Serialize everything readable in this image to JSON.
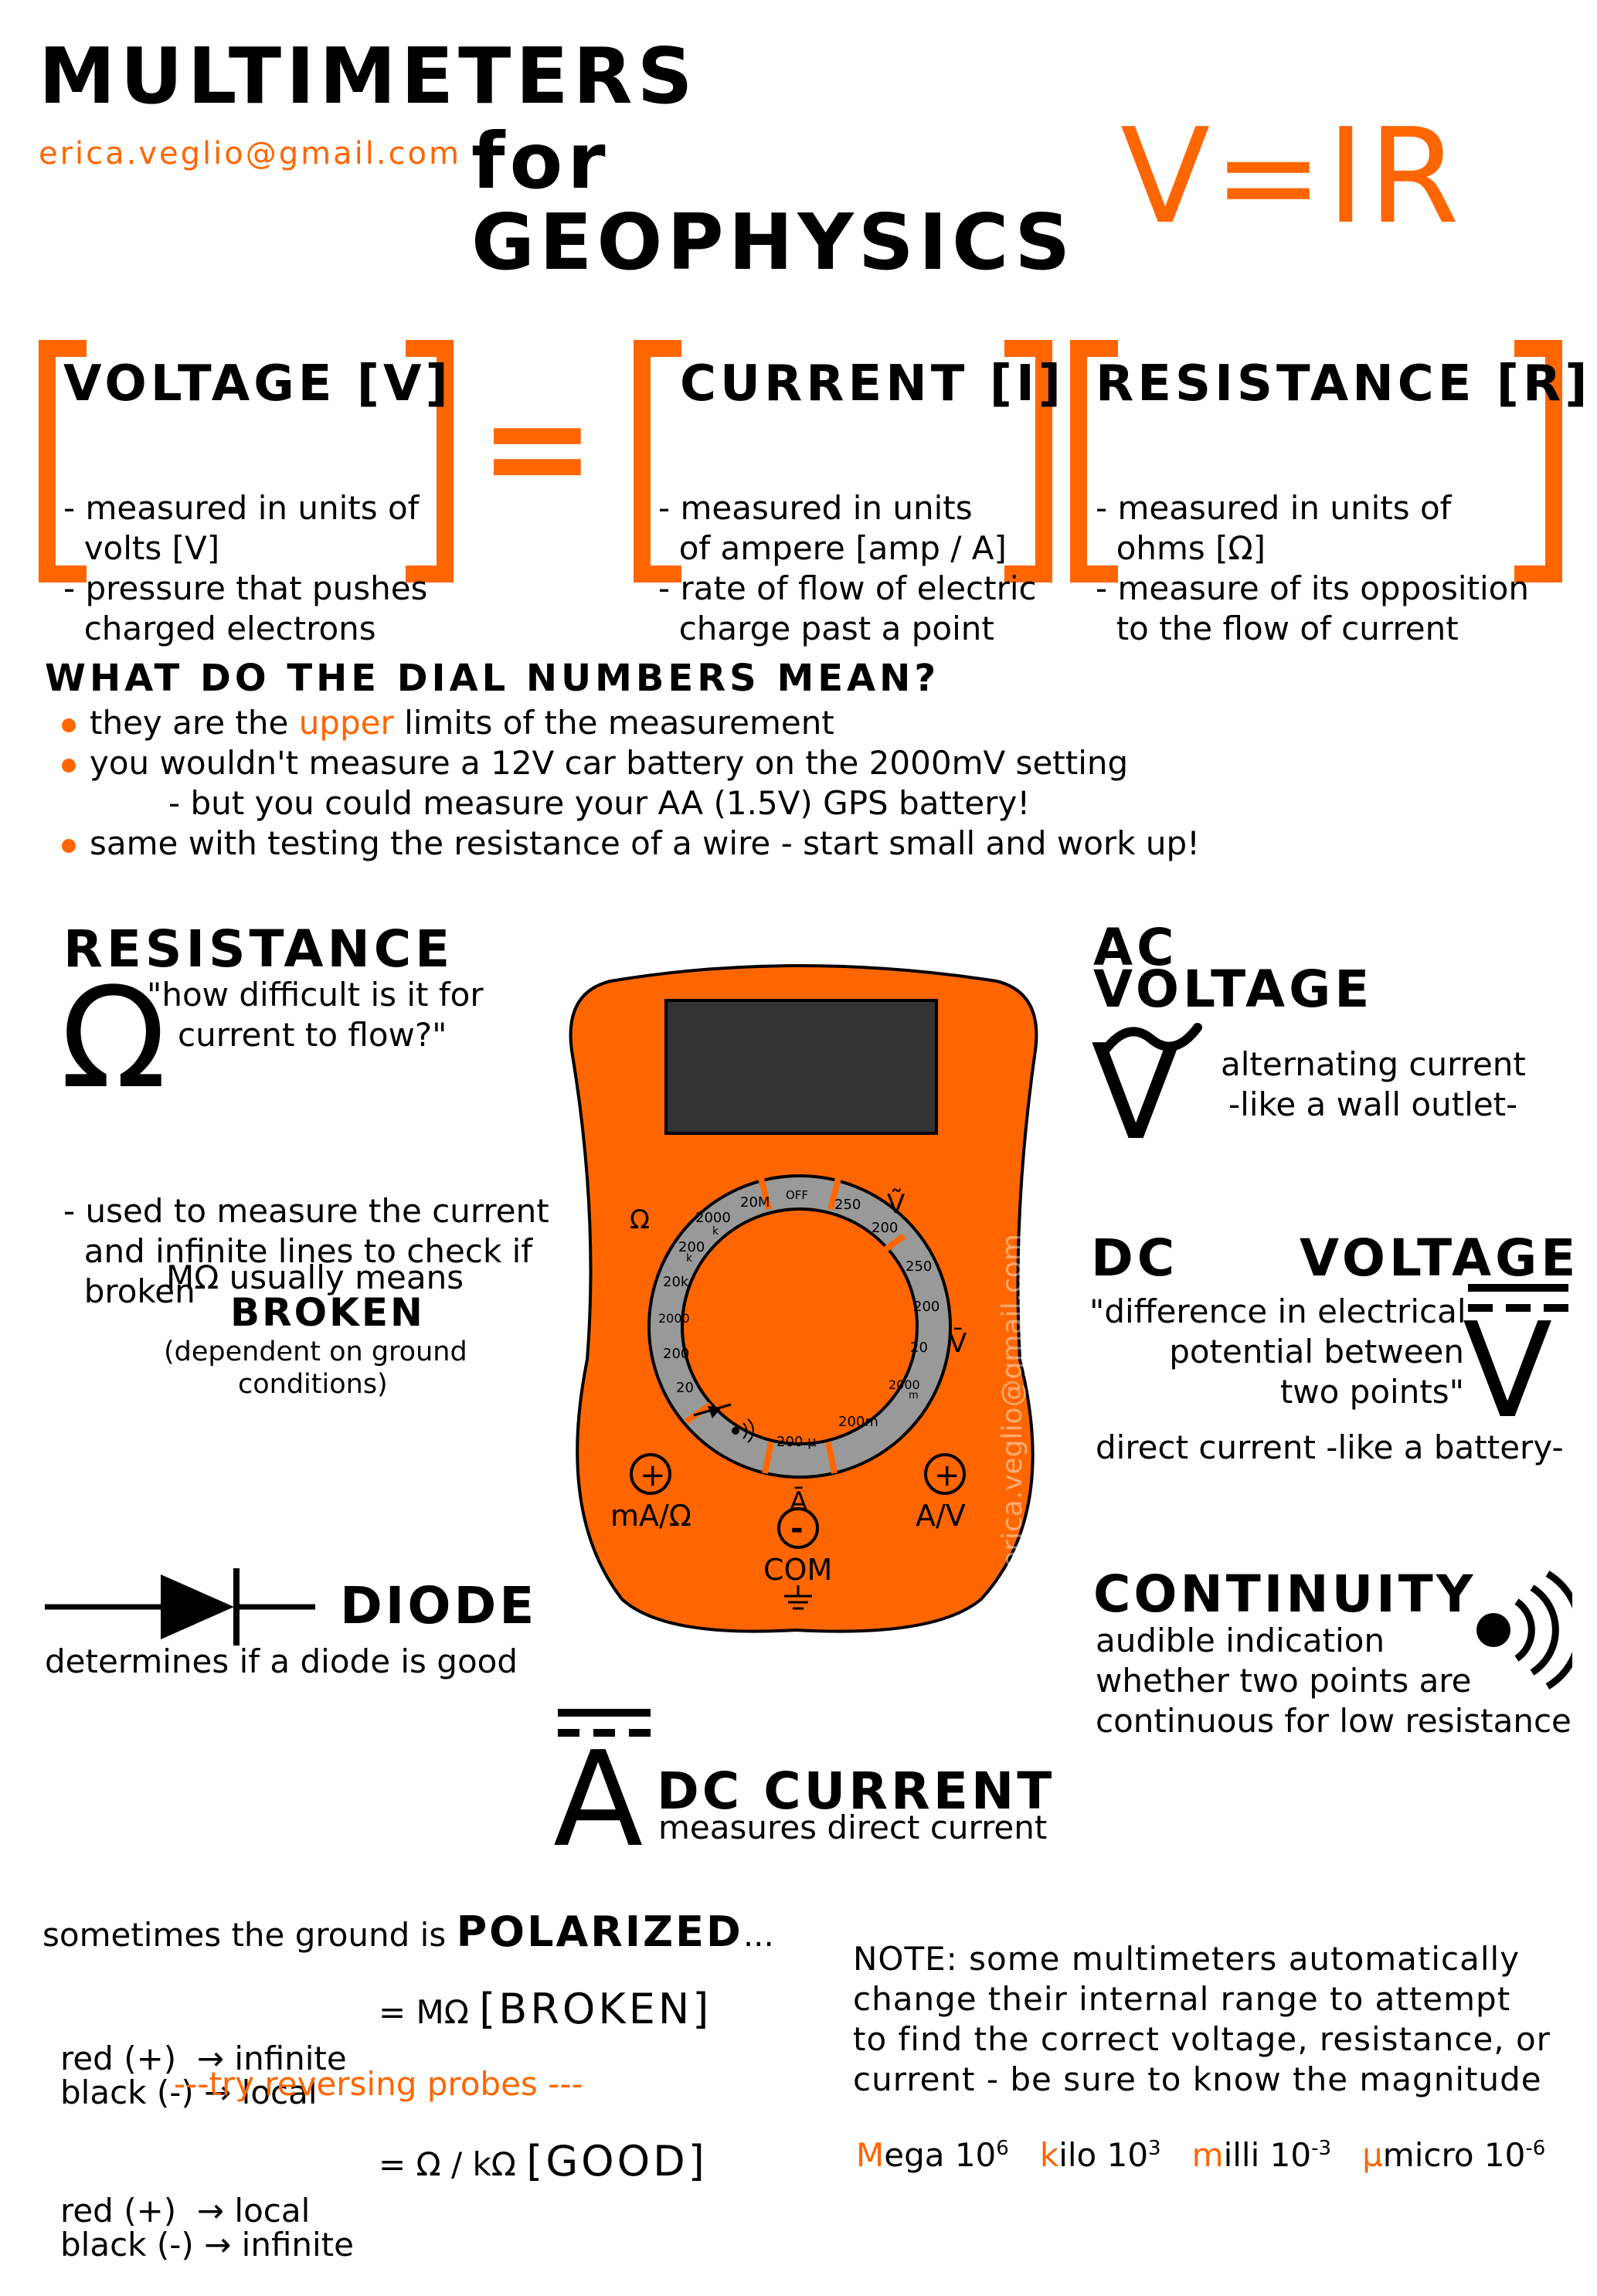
{
  "header": {
    "title_line1": "MULTIMETERS",
    "title_line2": "for",
    "title_line3": "GEOPHYSICS",
    "email": "erica.veglio@gmail.com",
    "formula": "V=IR"
  },
  "equation": {
    "equals": "=",
    "voltage": {
      "title": "VOLTAGE [V]",
      "lines": [
        "- measured in units of",
        "  volts [V]",
        "- pressure that pushes",
        "  charged electrons"
      ]
    },
    "current": {
      "title": "CURRENT [I]",
      "lines": [
        "- measured in units",
        "  of ampere [amp / A]",
        "- rate of flow of electric",
        "  charge past a point"
      ]
    },
    "resistance": {
      "title": "RESISTANCE [R]",
      "lines": [
        "- measured in units of",
        "  ohms [Ω]",
        "- measure of its opposition",
        "  to the flow of current"
      ]
    }
  },
  "dial_section": {
    "heading": "WHAT DO THE DIAL NUMBERS MEAN?",
    "b1_pre": "they are the ",
    "b1_hl": "upper",
    "b1_post": " limits of the measurement",
    "b2": "you wouldn't measure a 12V car battery on the 2000mV setting",
    "b2_sub": "- but you could measure your AA (1.5V) GPS battery!",
    "b3": "same with testing the resistance of a wire - start small and work up!"
  },
  "resistance": {
    "heading": "RESISTANCE",
    "symbol": "Ω",
    "quote_l1": "\"how difficult is it for",
    "quote_l2": "current to flow?\"",
    "desc": [
      "- used to measure the current",
      "  and infinite lines to check if",
      "  broken"
    ],
    "mohm": "MΩ usually means",
    "broken": "BROKEN",
    "dep_l1": "(dependent on ground",
    "dep_l2": "conditions)"
  },
  "ac": {
    "heading_l1": "AC",
    "heading_l2": "VOLTAGE",
    "symbol": "V",
    "desc_l1": "alternating current",
    "desc_l2": "-like a wall outlet-"
  },
  "dc": {
    "heading_l1": "DC",
    "heading_l2": "VOLTAGE",
    "symbol": "V",
    "quote": [
      "\"difference in electrical",
      "potential between",
      "two points\""
    ],
    "desc": "direct current -like a battery-"
  },
  "diode": {
    "heading": "DIODE",
    "desc": "determines if a diode is good"
  },
  "continuity": {
    "heading": "CONTINUITY",
    "desc": [
      "audible indication",
      "whether two points are",
      "continuous for low resistance"
    ]
  },
  "dc_current": {
    "symbol": "A",
    "heading": "DC CURRENT",
    "desc": "measures direct current"
  },
  "polarized": {
    "pre": "sometimes the ground is ",
    "word": "POLARIZED",
    "post": "...",
    "case1": {
      "l1": "red (+)  → infinite",
      "l2": "black (-) → local",
      "res_pre": "= MΩ ",
      "res_big": "[BROKEN]"
    },
    "try": "---try reversing probes ---",
    "case2": {
      "l1": "red (+)  → local",
      "l2": "black (-) → infinite",
      "res_pre": "= Ω / kΩ ",
      "res_big": "[GOOD]"
    }
  },
  "note": {
    "lines": [
      "NOTE: some multimeters automatically",
      "change their internal range to attempt",
      "to find the correct voltage, resistance, or",
      "current - be sure to know the magnitude"
    ],
    "prefixes": [
      {
        "letter": "M",
        "rest": "ega 10",
        "exp": "6"
      },
      {
        "letter": "k",
        "rest": "ilo 10",
        "exp": "3"
      },
      {
        "letter": "m",
        "rest": "illi 10",
        "exp": "-3"
      },
      {
        "letter": "µ",
        "rest": "micro 10",
        "exp": "-6"
      }
    ]
  },
  "meter": {
    "watermark": "erica.veglio@gmail.com",
    "off": "OFF",
    "omega": "Ω",
    "acv": "Ṽ",
    "dcv": "V̄",
    "dca": "Ā",
    "ohm_ranges": [
      "20M",
      "2000",
      "k",
      "200",
      "k",
      "20k",
      "2000",
      "200",
      "20"
    ],
    "acv_ranges": [
      "250",
      "200"
    ],
    "dcv_ranges": [
      "250",
      "200",
      "20",
      "2000",
      "m",
      "200m"
    ],
    "amp_range": "200 µ",
    "port_left": "mA/Ω",
    "port_right": "A/V",
    "port_com": "COM",
    "plus": "+",
    "minus": "-"
  },
  "colors": {
    "accent": "#ff6600",
    "screen": "#333333",
    "dial": "#999999"
  }
}
